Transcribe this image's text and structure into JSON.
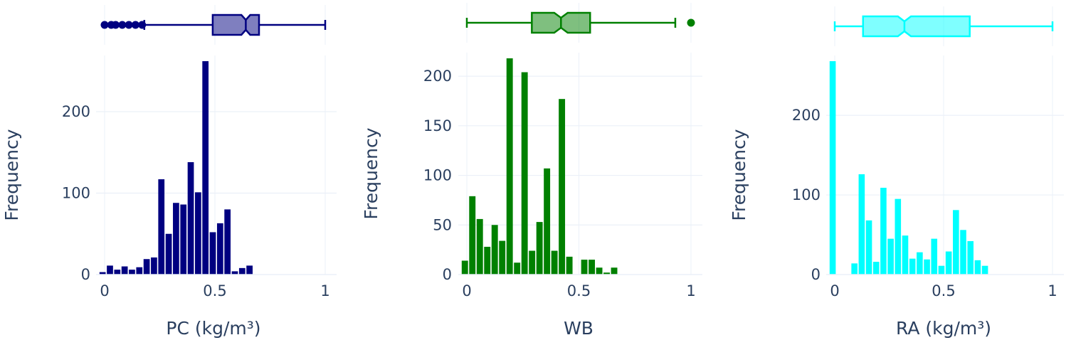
{
  "chart_data": [
    {
      "type": "histogram",
      "xlabel": "PC (kg/m³)",
      "ylabel": "Frequency",
      "color": "#000080",
      "xlim": [
        0,
        1
      ],
      "ylim": [
        0,
        262
      ],
      "bin_width": 0.0333,
      "bin_start": 0,
      "values": [
        3,
        11,
        6,
        10,
        6,
        9,
        19,
        21,
        117,
        50,
        88,
        86,
        138,
        101,
        262,
        52,
        63,
        80,
        4,
        8,
        11
      ],
      "xticks": [
        "0",
        "0.5",
        "1"
      ],
      "xtick_values": [
        0,
        0.5,
        1
      ],
      "yticks": [
        "0",
        "100",
        "200"
      ],
      "ytick_values": [
        0,
        100,
        200
      ],
      "box": {
        "min": 0.18,
        "q1": 0.49,
        "median": 0.64,
        "q3": 0.7,
        "max": 1.0,
        "notch": [
          0.62,
          0.66
        ],
        "outliers": [
          0.0,
          0.03,
          0.05,
          0.08,
          0.11,
          0.14,
          0.17
        ]
      }
    },
    {
      "type": "histogram",
      "xlabel": "WB",
      "ylabel": "Frequency",
      "color": "#008000",
      "xlim": [
        0,
        1
      ],
      "ylim": [
        0,
        218
      ],
      "bin_width": 0.0333,
      "bin_start": 0,
      "values": [
        14,
        79,
        56,
        28,
        50,
        34,
        218,
        12,
        204,
        24,
        53,
        107,
        24,
        177,
        18,
        0,
        15,
        15,
        7,
        2,
        7
      ],
      "xticks": [
        "0",
        "0.5",
        "1"
      ],
      "xtick_values": [
        0,
        0.5,
        1
      ],
      "yticks": [
        "0",
        "50",
        "100",
        "150",
        "200"
      ],
      "ytick_values": [
        0,
        50,
        100,
        150,
        200
      ],
      "box": {
        "min": 0.0,
        "q1": 0.29,
        "median": 0.42,
        "q3": 0.55,
        "max": 0.93,
        "notch": [
          0.39,
          0.45
        ],
        "outliers": [
          1.0
        ]
      }
    },
    {
      "type": "histogram",
      "xlabel": "RA (kg/m³)",
      "ylabel": "Frequency",
      "color": "#00ffff",
      "xlim": [
        0,
        1
      ],
      "ylim": [
        0,
        268
      ],
      "bin_width": 0.0333,
      "bin_start": 0,
      "values": [
        268,
        0,
        0,
        14,
        126,
        68,
        16,
        109,
        45,
        95,
        49,
        20,
        28,
        19,
        45,
        11,
        29,
        81,
        56,
        42,
        18,
        11
      ],
      "xticks": [
        "0",
        "0.5",
        "1"
      ],
      "xtick_values": [
        0,
        0.5,
        1
      ],
      "yticks": [
        "0",
        "100",
        "200"
      ],
      "ytick_values": [
        0,
        100,
        200
      ],
      "box": {
        "min": 0.0,
        "q1": 0.13,
        "median": 0.32,
        "q3": 0.62,
        "max": 1.0,
        "notch": [
          0.29,
          0.35
        ],
        "outliers": []
      }
    }
  ]
}
